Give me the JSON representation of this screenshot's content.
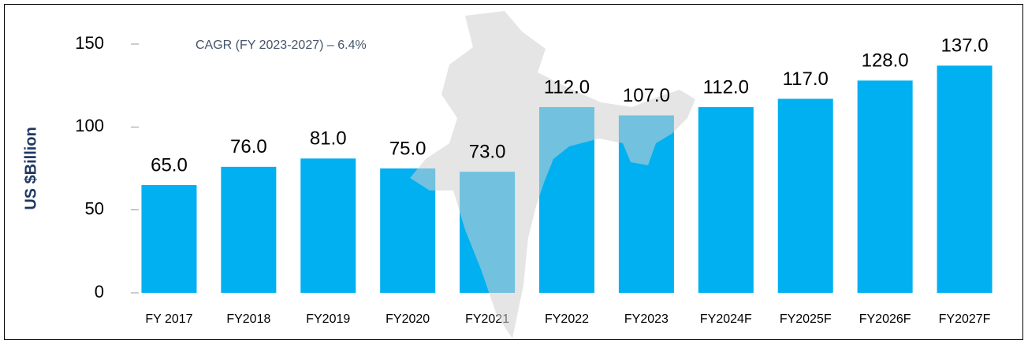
{
  "chart_data": {
    "type": "bar",
    "y_label": "US $Billion",
    "annotation": "CAGR (FY 2023-2027) – 6.4%",
    "categories": [
      "FY 2017",
      "FY2018",
      "FY2019",
      "FY2020",
      "FY2021",
      "FY2022",
      "FY2023",
      "FY2024F",
      "FY2025F",
      "FY2026F",
      "FY2027F"
    ],
    "values": [
      65,
      76,
      81,
      75,
      73,
      112,
      107,
      112,
      117,
      128,
      137
    ],
    "value_labels": [
      "65.0",
      "76.0",
      "81.0",
      "75.0",
      "73.0",
      "112.0",
      "107.0",
      "112.0",
      "117.0",
      "128.0",
      "137.0"
    ],
    "color": "#00b0f0",
    "ylim": [
      0,
      150
    ],
    "yticks": [
      0,
      50,
      100,
      150
    ],
    "grid": false
  }
}
